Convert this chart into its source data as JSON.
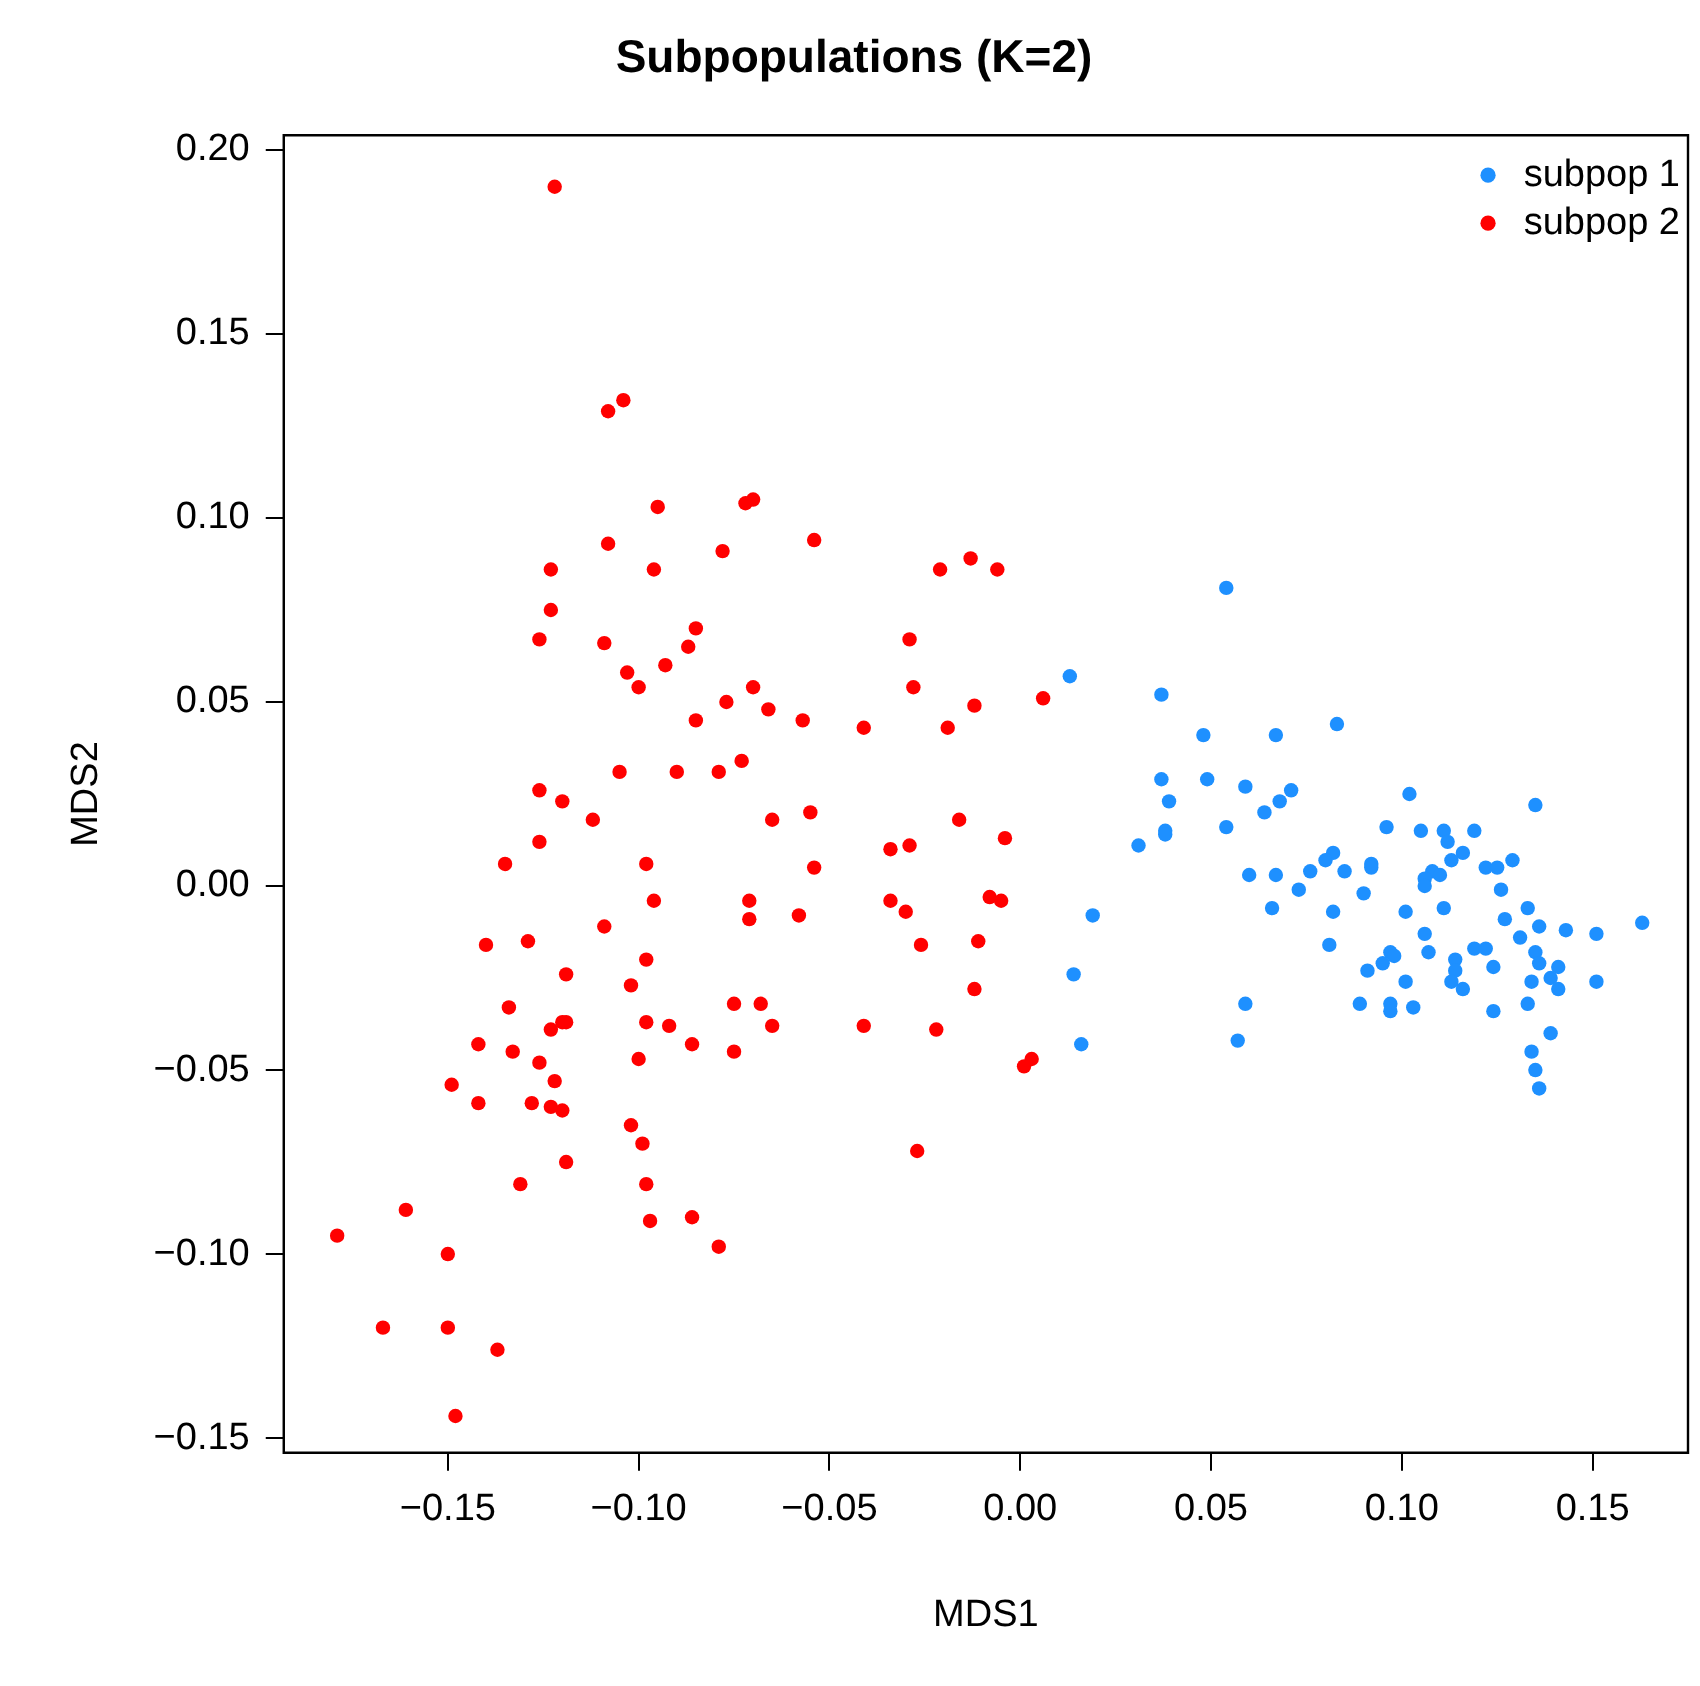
{
  "chart_data": {
    "type": "scatter",
    "title": "Subpopulations (K=2)",
    "xlabel": "MDS1",
    "ylabel": "MDS2",
    "xlim": [
      -0.193,
      0.175
    ],
    "ylim": [
      -0.154,
      0.204
    ],
    "xticks": [
      {
        "value": -0.15,
        "label": "−0.15"
      },
      {
        "value": -0.1,
        "label": "−0.10"
      },
      {
        "value": -0.05,
        "label": "−0.05"
      },
      {
        "value": 0,
        "label": "0.00"
      },
      {
        "value": 0.05,
        "label": "0.05"
      },
      {
        "value": 0.1,
        "label": "0.10"
      },
      {
        "value": 0.15,
        "label": "0.15"
      }
    ],
    "yticks": [
      {
        "value": -0.15,
        "label": "−0.15"
      },
      {
        "value": -0.1,
        "label": "−0.10"
      },
      {
        "value": -0.05,
        "label": "−0.05"
      },
      {
        "value": 0,
        "label": "0.00"
      },
      {
        "value": 0.05,
        "label": "0.05"
      },
      {
        "value": 0.1,
        "label": "0.10"
      },
      {
        "value": 0.15,
        "label": "0.15"
      },
      {
        "value": 0.2,
        "label": "0.20"
      }
    ],
    "grid": false,
    "legend": "top right",
    "marker": "circle",
    "series": [
      {
        "name": "subpop 1",
        "color": "#1e90ff",
        "x": [
          0.013,
          0.031,
          0.019,
          0.014,
          0.016,
          0.054,
          0.037,
          0.048,
          0.067,
          0.083,
          0.037,
          0.049,
          0.039,
          0.059,
          0.071,
          0.068,
          0.064,
          0.102,
          0.135,
          0.054,
          0.038,
          0.038,
          0.096,
          0.105,
          0.111,
          0.112,
          0.119,
          0.116,
          0.113,
          0.082,
          0.08,
          0.092,
          0.092,
          0.085,
          0.076,
          0.122,
          0.125,
          0.129,
          0.06,
          0.067,
          0.073,
          0.09,
          0.108,
          0.11,
          0.106,
          0.106,
          0.126,
          0.066,
          0.082,
          0.101,
          0.111,
          0.127,
          0.133,
          0.136,
          0.143,
          0.151,
          0.163,
          0.106,
          0.131,
          0.081,
          0.107,
          0.119,
          0.122,
          0.097,
          0.098,
          0.095,
          0.091,
          0.114,
          0.114,
          0.124,
          0.135,
          0.136,
          0.141,
          0.139,
          0.141,
          0.151,
          0.134,
          0.113,
          0.116,
          0.101,
          0.059,
          0.057,
          0.089,
          0.097,
          0.097,
          0.103,
          0.124,
          0.133,
          0.139,
          0.134,
          0.135,
          0.136
        ],
        "values": [
          0.057,
          0.011,
          -0.008,
          -0.024,
          -0.043,
          0.081,
          0.052,
          0.041,
          0.041,
          0.044,
          0.029,
          0.029,
          0.023,
          0.027,
          0.026,
          0.023,
          0.02,
          0.025,
          0.022,
          0.016,
          0.015,
          0.014,
          0.016,
          0.015,
          0.015,
          0.012,
          0.015,
          0.009,
          0.007,
          0.009,
          0.007,
          0.006,
          0.005,
          0.004,
          0.004,
          0.005,
          0.005,
          0.007,
          0.003,
          0.003,
          -0.001,
          -0.002,
          0.004,
          0.003,
          0.002,
          0,
          -0.001,
          -0.006,
          -0.007,
          -0.007,
          -0.006,
          -0.009,
          -0.006,
          -0.011,
          -0.012,
          -0.013,
          -0.01,
          -0.013,
          -0.014,
          -0.016,
          -0.018,
          -0.017,
          -0.017,
          -0.018,
          -0.019,
          -0.021,
          -0.023,
          -0.02,
          -0.023,
          -0.022,
          -0.018,
          -0.021,
          -0.022,
          -0.025,
          -0.028,
          -0.026,
          -0.026,
          -0.026,
          -0.028,
          -0.026,
          -0.032,
          -0.042,
          -0.032,
          -0.032,
          -0.034,
          -0.033,
          -0.034,
          -0.032,
          -0.04,
          -0.045,
          -0.05,
          -0.055
        ]
      },
      {
        "name": "subpop 2",
        "color": "#ff0000",
        "x": [
          -0.122,
          -0.108,
          -0.104,
          -0.095,
          -0.072,
          -0.07,
          -0.108,
          -0.078,
          -0.123,
          -0.096,
          -0.123,
          -0.126,
          -0.109,
          -0.085,
          -0.087,
          -0.103,
          -0.093,
          -0.1,
          -0.085,
          -0.077,
          -0.07,
          -0.066,
          -0.105,
          -0.09,
          -0.079,
          -0.073,
          -0.126,
          -0.12,
          -0.112,
          -0.065,
          -0.126,
          -0.135,
          -0.098,
          -0.096,
          -0.071,
          -0.071,
          -0.109,
          -0.14,
          -0.129,
          -0.098,
          -0.119,
          -0.102,
          -0.134,
          -0.075,
          -0.068,
          -0.123,
          -0.12,
          -0.119,
          -0.098,
          -0.092,
          -0.065,
          -0.142,
          -0.133,
          -0.086,
          -0.075,
          -0.126,
          -0.1,
          -0.149,
          -0.142,
          -0.128,
          -0.123,
          -0.12,
          -0.122,
          -0.102,
          -0.099,
          -0.119,
          -0.131,
          -0.098,
          -0.161,
          -0.179,
          -0.15,
          -0.097,
          -0.086,
          -0.079,
          -0.167,
          -0.15,
          -0.137,
          -0.148,
          -0.054,
          -0.021,
          -0.013,
          -0.006,
          -0.029,
          -0.028,
          -0.012,
          0.006,
          -0.057,
          -0.041,
          -0.019,
          -0.055,
          -0.016,
          -0.004,
          -0.034,
          -0.029,
          -0.054,
          -0.034,
          -0.03,
          -0.008,
          -0.005,
          -0.058,
          -0.026,
          -0.011,
          -0.012,
          -0.041,
          -0.022,
          0.001,
          0.003,
          -0.027
        ],
        "values": [
          0.19,
          0.129,
          0.132,
          0.103,
          0.104,
          0.105,
          0.093,
          0.091,
          0.086,
          0.086,
          0.075,
          0.067,
          0.066,
          0.07,
          0.065,
          0.058,
          0.06,
          0.054,
          0.045,
          0.05,
          0.054,
          0.048,
          0.031,
          0.031,
          0.031,
          0.034,
          0.026,
          0.023,
          0.018,
          0.018,
          0.012,
          0.006,
          0.006,
          -0.004,
          -0.004,
          -0.009,
          -0.011,
          -0.016,
          -0.015,
          -0.02,
          -0.024,
          -0.027,
          -0.033,
          -0.032,
          -0.032,
          -0.039,
          -0.037,
          -0.037,
          -0.037,
          -0.038,
          -0.038,
          -0.043,
          -0.045,
          -0.043,
          -0.045,
          -0.048,
          -0.047,
          -0.054,
          -0.059,
          -0.059,
          -0.06,
          -0.061,
          -0.053,
          -0.065,
          -0.07,
          -0.075,
          -0.081,
          -0.081,
          -0.088,
          -0.095,
          -0.1,
          -0.091,
          -0.09,
          -0.098,
          -0.12,
          -0.12,
          -0.126,
          -0.144,
          0.094,
          0.086,
          0.089,
          0.086,
          0.067,
          0.054,
          0.049,
          0.051,
          0.045,
          0.043,
          0.043,
          0.02,
          0.018,
          0.013,
          0.01,
          0.011,
          0.005,
          -0.004,
          -0.007,
          -0.003,
          -0.004,
          -0.008,
          -0.016,
          -0.015,
          -0.028,
          -0.038,
          -0.039,
          -0.049,
          -0.047,
          -0.072
        ]
      }
    ]
  }
}
